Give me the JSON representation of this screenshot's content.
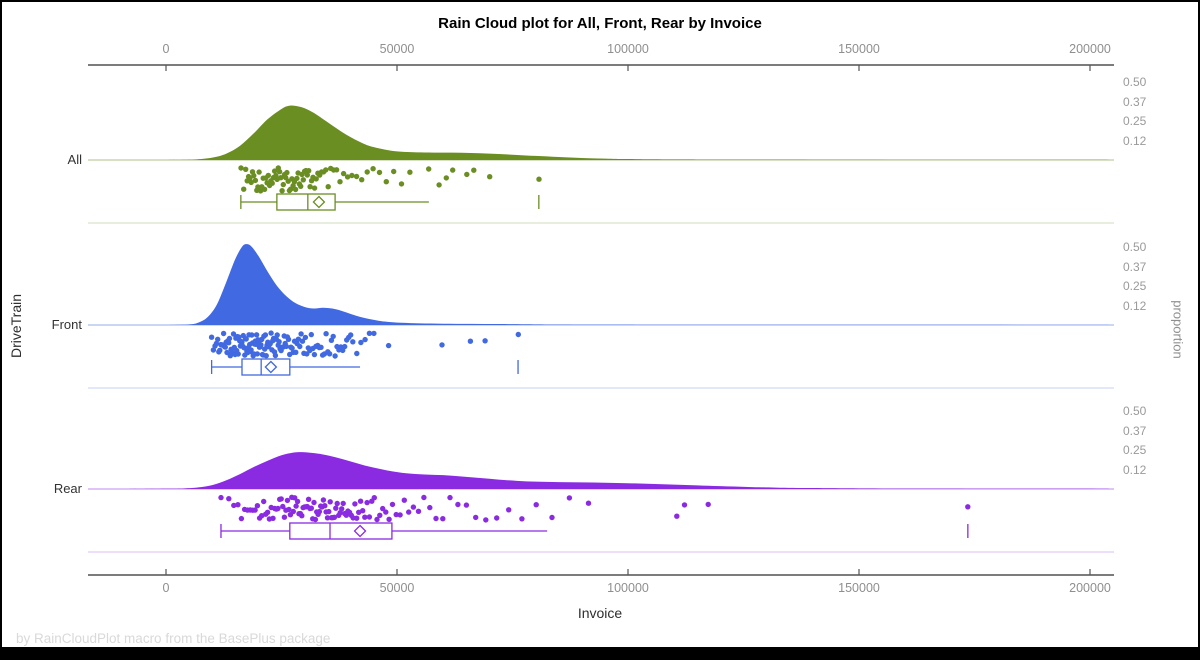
{
  "title": "Rain Cloud plot for All, Front, Rear by Invoice",
  "footer": "by RainCloudPlot macro from the BasePlus package",
  "axes": {
    "x": {
      "label": "Invoice",
      "tick_labels": [
        "0",
        "50000",
        "100000",
        "150000",
        "200000"
      ],
      "tick_values": [
        0,
        50000,
        100000,
        150000,
        200000
      ]
    },
    "y_left": {
      "label": "DriveTrain",
      "categories": [
        "All",
        "Front",
        "Rear"
      ]
    },
    "y_right": {
      "label": "proportion",
      "tick_labels": [
        "0.50",
        "0.37",
        "0.25",
        "0.12"
      ],
      "tick_values": [
        0.5,
        0.37,
        0.25,
        0.12
      ]
    }
  },
  "chart_data": {
    "type": "raincloud",
    "title": "Rain Cloud plot for All, Front, Rear by Invoice",
    "xlabel": "Invoice",
    "ylabel_left": "DriveTrain",
    "ylabel_right": "proportion",
    "x_ticks": [
      0,
      50000,
      100000,
      150000,
      200000
    ],
    "x_range": [
      -17000,
      205000
    ],
    "proportion_ticks": [
      0.5,
      0.37,
      0.25,
      0.12
    ],
    "grid": false,
    "groups": [
      {
        "name": "All",
        "color": "#6b8e23",
        "density": [
          [
            0,
            0
          ],
          [
            6000,
            0.003
          ],
          [
            10000,
            0.015
          ],
          [
            13000,
            0.04
          ],
          [
            16000,
            0.09
          ],
          [
            19000,
            0.17
          ],
          [
            22000,
            0.26
          ],
          [
            25000,
            0.325
          ],
          [
            26500,
            0.345
          ],
          [
            28000,
            0.345
          ],
          [
            30000,
            0.33
          ],
          [
            32000,
            0.3
          ],
          [
            34000,
            0.26
          ],
          [
            36000,
            0.22
          ],
          [
            38000,
            0.18
          ],
          [
            40000,
            0.145
          ],
          [
            42000,
            0.115
          ],
          [
            44000,
            0.09
          ],
          [
            46000,
            0.075
          ],
          [
            48000,
            0.063
          ],
          [
            50000,
            0.055
          ],
          [
            53000,
            0.05
          ],
          [
            56000,
            0.048
          ],
          [
            60000,
            0.047
          ],
          [
            64000,
            0.046
          ],
          [
            68000,
            0.043
          ],
          [
            72000,
            0.038
          ],
          [
            76000,
            0.032
          ],
          [
            80000,
            0.026
          ],
          [
            85000,
            0.019
          ],
          [
            90000,
            0.013
          ],
          [
            95000,
            0.009
          ],
          [
            100000,
            0.006
          ],
          [
            110000,
            0.004
          ],
          [
            125000,
            0.003
          ],
          [
            150000,
            0.002
          ],
          [
            175000,
            0.0015
          ],
          [
            204000,
            0.001
          ]
        ],
        "box": {
          "low": 16200,
          "q1": 24000,
          "median": 30700,
          "mean": 33100,
          "q3": 36600,
          "high": 56900,
          "outliers": [
            80700
          ]
        },
        "points": [
          16229,
          16825,
          17245,
          17580,
          17889,
          18150,
          18448,
          18721,
          19012,
          19340,
          19645,
          19893,
          20155,
          20484,
          20736,
          21042,
          21347,
          21602,
          21888,
          22145,
          22433,
          22705,
          22988,
          23249,
          23516,
          23778,
          24052,
          24311,
          24587,
          24855,
          25123,
          25397,
          25648,
          25912,
          26178,
          26445,
          26709,
          26978,
          27245,
          27513,
          27782,
          28054,
          28327,
          28598,
          28874,
          29152,
          29430,
          29715,
          30002,
          30290,
          30585,
          30884,
          31190,
          31505,
          31828,
          32162,
          32510,
          32875,
          33260,
          33670,
          34110,
          34585,
          35100,
          35660,
          36270,
          36935,
          37660,
          38450,
          39310,
          40245,
          41260,
          42360,
          43550,
          44830,
          46210,
          47690,
          49280,
          50980,
          52800,
          56865,
          59115,
          60680,
          62055,
          65115,
          66620,
          70060,
          80735
        ]
      },
      {
        "name": "Front",
        "color": "#4169e1",
        "density": [
          [
            0,
            0
          ],
          [
            5000,
            0.004
          ],
          [
            7000,
            0.015
          ],
          [
            9000,
            0.05
          ],
          [
            11000,
            0.13
          ],
          [
            13000,
            0.27
          ],
          [
            15000,
            0.42
          ],
          [
            16500,
            0.5
          ],
          [
            17500,
            0.515
          ],
          [
            18500,
            0.5
          ],
          [
            20000,
            0.44
          ],
          [
            22000,
            0.34
          ],
          [
            24000,
            0.25
          ],
          [
            26000,
            0.185
          ],
          [
            28000,
            0.14
          ],
          [
            30000,
            0.115
          ],
          [
            32000,
            0.105
          ],
          [
            34000,
            0.11
          ],
          [
            36000,
            0.105
          ],
          [
            38000,
            0.09
          ],
          [
            40000,
            0.07
          ],
          [
            42000,
            0.052
          ],
          [
            44000,
            0.038
          ],
          [
            46000,
            0.027
          ],
          [
            48000,
            0.02
          ],
          [
            51000,
            0.014
          ],
          [
            55000,
            0.01
          ],
          [
            60000,
            0.008
          ],
          [
            66000,
            0.007
          ],
          [
            72000,
            0.006
          ],
          [
            78000,
            0.005
          ],
          [
            85000,
            0.003
          ],
          [
            95000,
            0.002
          ],
          [
            110000,
            0.0015
          ],
          [
            204000,
            0.001
          ]
        ],
        "box": {
          "low": 9875,
          "q1": 16450,
          "median": 20600,
          "mean": 22700,
          "q3": 26800,
          "high": 42000,
          "outliers": [
            76200
          ]
        },
        "points": [
          9875,
          10255,
          10605,
          10910,
          11180,
          11425,
          11650,
          11865,
          12070,
          12270,
          12465,
          12655,
          12840,
          13025,
          13210,
          13390,
          13570,
          13750,
          13925,
          14100,
          14275,
          14450,
          14620,
          14790,
          14960,
          15130,
          15295,
          15460,
          15625,
          15790,
          15950,
          16110,
          16270,
          16430,
          16585,
          16740,
          16895,
          17050,
          17205,
          17360,
          17515,
          17670,
          17820,
          17970,
          18120,
          18270,
          18420,
          18570,
          18720,
          18870,
          19020,
          19170,
          19320,
          19470,
          19620,
          19770,
          19925,
          20080,
          20235,
          20390,
          20545,
          20705,
          20865,
          21025,
          21190,
          21355,
          21520,
          21690,
          21860,
          22030,
          22205,
          22380,
          22560,
          22740,
          22925,
          23110,
          23300,
          23490,
          23685,
          23880,
          24080,
          24285,
          24490,
          24700,
          24915,
          25130,
          25350,
          25575,
          25805,
          26040,
          26280,
          26525,
          26775,
          27030,
          27290,
          27555,
          27825,
          28100,
          28380,
          28665,
          28955,
          29250,
          29550,
          29855,
          30165,
          30480,
          30800,
          31125,
          31455,
          31790,
          32130,
          32475,
          32825,
          33180,
          33540,
          33905,
          34275,
          34650,
          35030,
          35415,
          35805,
          36200,
          36600,
          37005,
          37415,
          37830,
          38250,
          38675,
          39105,
          39540,
          39980,
          40425,
          41290,
          42180,
          43095,
          44035,
          45000,
          48175,
          59745,
          65890,
          69080,
          76245
        ]
      },
      {
        "name": "Rear",
        "color": "#8a2be2",
        "density": [
          [
            -8000,
            0
          ],
          [
            0,
            0.002
          ],
          [
            4000,
            0.004
          ],
          [
            7000,
            0.01
          ],
          [
            10000,
            0.025
          ],
          [
            13000,
            0.055
          ],
          [
            16000,
            0.095
          ],
          [
            19000,
            0.14
          ],
          [
            22000,
            0.18
          ],
          [
            25000,
            0.215
          ],
          [
            27500,
            0.232
          ],
          [
            29500,
            0.235
          ],
          [
            31500,
            0.23
          ],
          [
            34000,
            0.22
          ],
          [
            37000,
            0.2
          ],
          [
            40000,
            0.175
          ],
          [
            43000,
            0.15
          ],
          [
            46000,
            0.13
          ],
          [
            49000,
            0.112
          ],
          [
            52000,
            0.1
          ],
          [
            56000,
            0.092
          ],
          [
            60000,
            0.088
          ],
          [
            64000,
            0.08
          ],
          [
            68000,
            0.07
          ],
          [
            72000,
            0.06
          ],
          [
            76000,
            0.052
          ],
          [
            80000,
            0.047
          ],
          [
            85000,
            0.044
          ],
          [
            90000,
            0.042
          ],
          [
            95000,
            0.04
          ],
          [
            100000,
            0.037
          ],
          [
            105000,
            0.033
          ],
          [
            110000,
            0.028
          ],
          [
            115000,
            0.023
          ],
          [
            120000,
            0.018
          ],
          [
            126000,
            0.013
          ],
          [
            132000,
            0.009
          ],
          [
            140000,
            0.006
          ],
          [
            150000,
            0.004
          ],
          [
            162000,
            0.003
          ],
          [
            175000,
            0.0025
          ],
          [
            190000,
            0.002
          ],
          [
            204000,
            0.0015
          ]
        ],
        "box": {
          "low": 11900,
          "q1": 26800,
          "median": 35500,
          "mean": 42000,
          "q3": 48900,
          "high": 82500,
          "outliers": [
            173560
          ]
        },
        "points": [
          11910,
          13585,
          14670,
          15555,
          16320,
          17005,
          17635,
          18220,
          18770,
          19290,
          19785,
          20260,
          20715,
          21155,
          21580,
          21990,
          22390,
          22780,
          23160,
          23530,
          23895,
          24250,
          24600,
          24945,
          25285,
          25620,
          25950,
          26275,
          26600,
          26920,
          27235,
          27550,
          27860,
          28170,
          28475,
          28780,
          29085,
          29385,
          29685,
          29985,
          30280,
          30575,
          30870,
          31165,
          31460,
          31750,
          32040,
          32335,
          32625,
          32915,
          33205,
          33495,
          33785,
          34075,
          34365,
          34655,
          34950,
          35245,
          35540,
          35840,
          36140,
          36445,
          36750,
          37060,
          37375,
          37695,
          38020,
          38350,
          38685,
          39030,
          39380,
          39740,
          40110,
          40490,
          40880,
          41285,
          41700,
          42130,
          42575,
          43040,
          43520,
          44020,
          44545,
          45090,
          45665,
          46270,
          46905,
          47575,
          48285,
          49035,
          49830,
          50675,
          51575,
          52535,
          53560,
          54655,
          55830,
          57090,
          58445,
          59905,
          61480,
          63185,
          65030,
          67035,
          69215,
          71590,
          74185,
          77025,
          80140,
          83560,
          87320,
          91455,
          110565,
          112230,
          117350,
          173560
        ]
      }
    ]
  }
}
